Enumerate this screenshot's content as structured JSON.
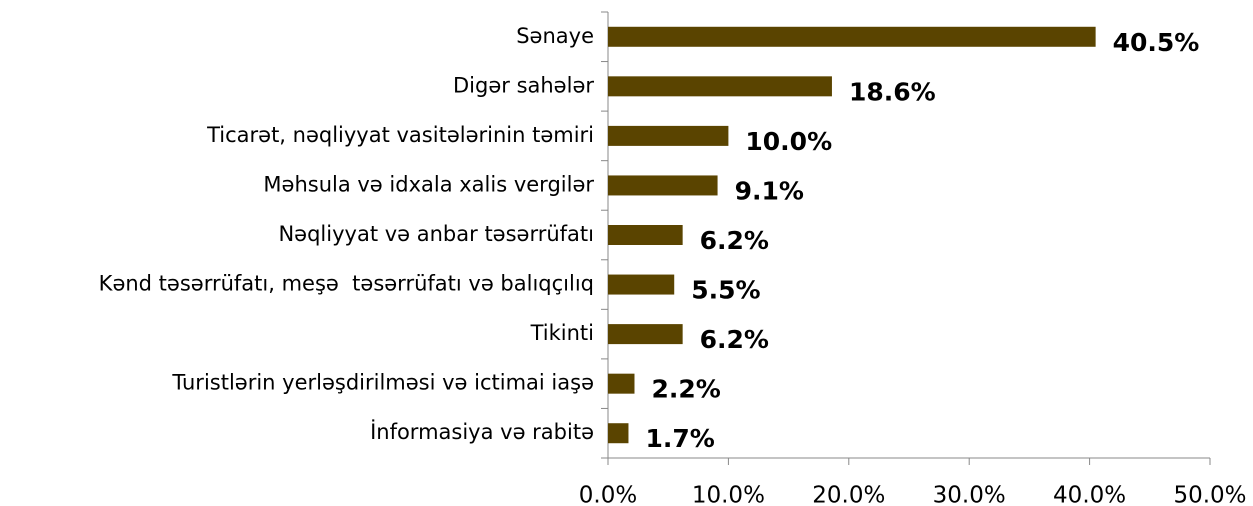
{
  "chart_data": {
    "type": "bar",
    "orientation": "horizontal",
    "categories": [
      "Sənaye",
      "Digər sahələr",
      "Ticarət, nəqliyyat vasitələrinin təmiri",
      "Məhsula və idxala xalis vergilər",
      "Nəqliyyat və anbar təsərrüfatı",
      "Kənd təsərrüfatı, meşə  təsərrüfatı və balıqçılıq",
      "Tikinti",
      "Turistlərin yerləşdirilməsi və ictimai iaşə",
      "İnformasiya və rabitə"
    ],
    "values": [
      40.5,
      18.6,
      10.0,
      9.1,
      6.2,
      5.5,
      6.2,
      2.2,
      1.7
    ],
    "value_labels": [
      "40.5%",
      "18.6%",
      "10.0%",
      "9.1%",
      "6.2%",
      "5.5%",
      "6.2%",
      "2.2%",
      "1.7%"
    ],
    "color": "#5a4400",
    "xlim": [
      0,
      50
    ],
    "xticks": [
      {
        "value": 0,
        "label": "0.0%"
      },
      {
        "value": 10,
        "label": "10.0%"
      },
      {
        "value": 20,
        "label": "20.0%"
      },
      {
        "value": 30,
        "label": "30.0%"
      },
      {
        "value": 40,
        "label": "40.0%"
      },
      {
        "value": 50,
        "label": "50.0%"
      }
    ],
    "grid": false
  }
}
